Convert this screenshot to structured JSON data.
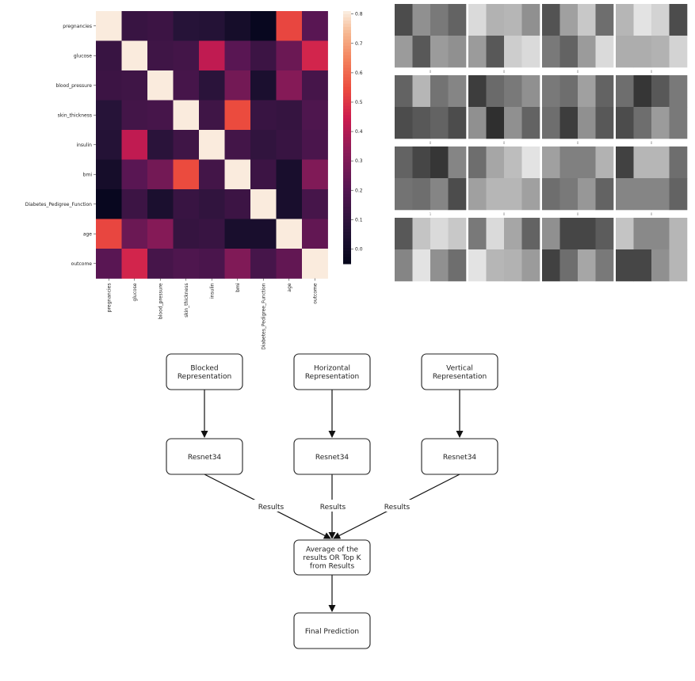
{
  "heatmap": {
    "variables": [
      "pregnancies",
      "glucose",
      "blood_pressure",
      "skin_thickness",
      "insulin",
      "bmi",
      "Diabetes_Pedigree_Function",
      "age",
      "outcome"
    ],
    "matrix": [
      [
        1.0,
        0.13,
        0.14,
        0.08,
        0.07,
        0.02,
        -0.03,
        0.54,
        0.22
      ],
      [
        0.13,
        1.0,
        0.15,
        0.16,
        0.43,
        0.22,
        0.14,
        0.26,
        0.47
      ],
      [
        0.14,
        0.15,
        1.0,
        0.17,
        0.09,
        0.28,
        0.04,
        0.32,
        0.17
      ],
      [
        0.08,
        0.16,
        0.17,
        1.0,
        0.15,
        0.55,
        0.13,
        0.12,
        0.19
      ],
      [
        0.07,
        0.43,
        0.09,
        0.15,
        1.0,
        0.16,
        0.11,
        0.13,
        0.18
      ],
      [
        0.02,
        0.22,
        0.28,
        0.55,
        0.16,
        1.0,
        0.14,
        0.03,
        0.31
      ],
      [
        -0.03,
        0.14,
        0.04,
        0.13,
        0.11,
        0.14,
        1.0,
        0.03,
        0.17
      ],
      [
        0.54,
        0.26,
        0.32,
        0.12,
        0.13,
        0.03,
        0.03,
        1.0,
        0.24
      ],
      [
        0.22,
        0.47,
        0.17,
        0.19,
        0.18,
        0.31,
        0.17,
        0.24,
        1.0
      ]
    ],
    "colorbar": {
      "range": [
        -0.05,
        0.81
      ],
      "ticks": [
        "0.8",
        "0.7",
        "0.6",
        "0.5",
        "0.4",
        "0.3",
        "0.2",
        "0.1",
        "0.0"
      ]
    }
  },
  "thumbnails": {
    "cell_labels": [
      "0",
      "0",
      "0",
      "0",
      "0",
      "0",
      "0",
      "0",
      "1",
      "0",
      "0",
      "0"
    ],
    "panels": [
      [
        [
          0.25,
          0.55,
          0.45,
          0.35
        ],
        [
          0.6,
          0.3,
          0.6,
          0.55
        ]
      ],
      [
        [
          0.88,
          0.7,
          0.72,
          0.55
        ],
        [
          0.6,
          0.3,
          0.82,
          0.88
        ]
      ],
      [
        [
          0.28,
          0.62,
          0.8,
          0.4
        ],
        [
          0.45,
          0.35,
          0.6,
          0.88
        ]
      ],
      [
        [
          0.72,
          0.92,
          0.85,
          0.25
        ],
        [
          0.68,
          0.68,
          0.7,
          0.85
        ]
      ],
      [
        [
          0.35,
          0.72,
          0.42,
          0.5
        ],
        [
          0.25,
          0.3,
          0.35,
          0.25
        ]
      ],
      [
        [
          0.18,
          0.38,
          0.45,
          0.55
        ],
        [
          0.55,
          0.12,
          0.55,
          0.35
        ]
      ],
      [
        [
          0.45,
          0.4,
          0.62,
          0.35
        ],
        [
          0.4,
          0.18,
          0.55,
          0.3
        ]
      ],
      [
        [
          0.4,
          0.15,
          0.3,
          0.45
        ],
        [
          0.25,
          0.4,
          0.6,
          0.45
        ]
      ],
      [
        [
          0.35,
          0.22,
          0.15,
          0.5
        ],
        [
          0.42,
          0.4,
          0.5,
          0.25
        ]
      ],
      [
        [
          0.4,
          0.65,
          0.75,
          0.92
        ],
        [
          0.62,
          0.72,
          0.72,
          0.62
        ]
      ],
      [
        [
          0.62,
          0.48,
          0.48,
          0.7
        ],
        [
          0.4,
          0.45,
          0.58,
          0.35
        ]
      ],
      [
        [
          0.2,
          0.72,
          0.72,
          0.4
        ],
        [
          0.5,
          0.5,
          0.5,
          0.35
        ]
      ],
      [
        [
          0.3,
          0.78,
          0.88,
          0.8
        ],
        [
          0.5,
          0.92,
          0.55,
          0.4
        ]
      ],
      [
        [
          0.45,
          0.88,
          0.65,
          0.35
        ],
        [
          0.92,
          0.72,
          0.7,
          0.6
        ]
      ],
      [
        [
          0.55,
          0.22,
          0.22,
          0.32
        ],
        [
          0.2,
          0.4,
          0.65,
          0.45
        ]
      ],
      [
        [
          0.78,
          0.52,
          0.52,
          0.72
        ],
        [
          0.22,
          0.22,
          0.55,
          0.72
        ]
      ]
    ]
  },
  "flowchart": {
    "inputs": [
      {
        "label": "Blocked Representation"
      },
      {
        "label": "Horizontal Representation"
      },
      {
        "label": "Vertical Representation"
      }
    ],
    "models": [
      {
        "label": "Resnet34"
      },
      {
        "label": "Resnet34"
      },
      {
        "label": "Resnet34"
      }
    ],
    "edge_labels": [
      "Results",
      "Results",
      "Results"
    ],
    "aggregate": {
      "label": "Average of the results OR Top K from Results"
    },
    "output": {
      "label": "Final Prediction"
    }
  }
}
